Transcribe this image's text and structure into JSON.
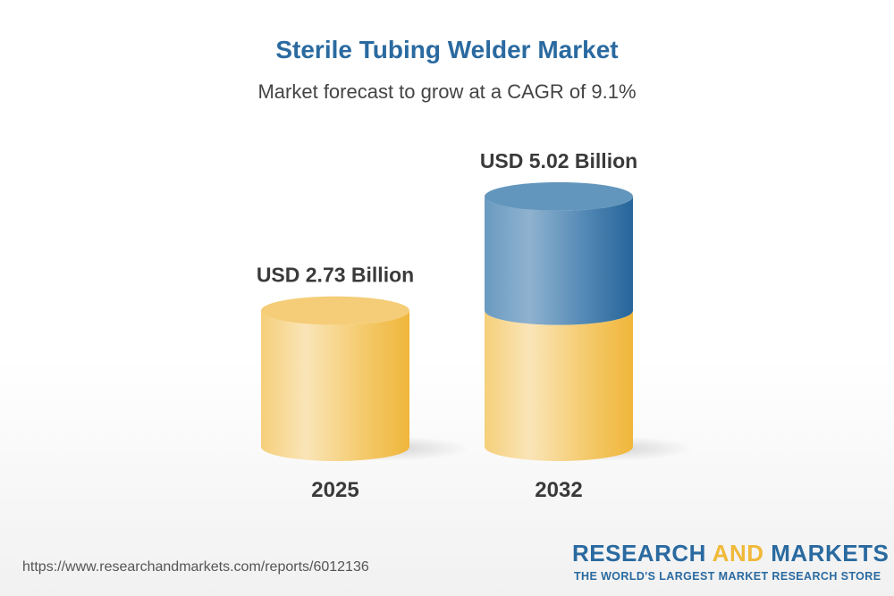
{
  "title": "Sterile Tubing Welder Market",
  "subtitle": "Market forecast to grow at a CAGR of 9.1%",
  "chart_data": {
    "type": "bar",
    "style": "3d-cylinder",
    "categories": [
      "2025",
      "2032"
    ],
    "values": [
      2.73,
      5.02
    ],
    "data_labels": [
      "USD 2.73 Billion",
      "USD 5.02 Billion"
    ],
    "unit": "USD Billion",
    "colors": {
      "base": "#f0b93a",
      "growth": "#2a6aa0"
    }
  },
  "footer": {
    "url": "https://www.researchandmarkets.com/reports/6012136",
    "logo_part1": "RESEARCH ",
    "logo_part2": "AND",
    "logo_part3": " MARKETS",
    "tagline": "THE WORLD'S LARGEST MARKET RESEARCH STORE"
  }
}
